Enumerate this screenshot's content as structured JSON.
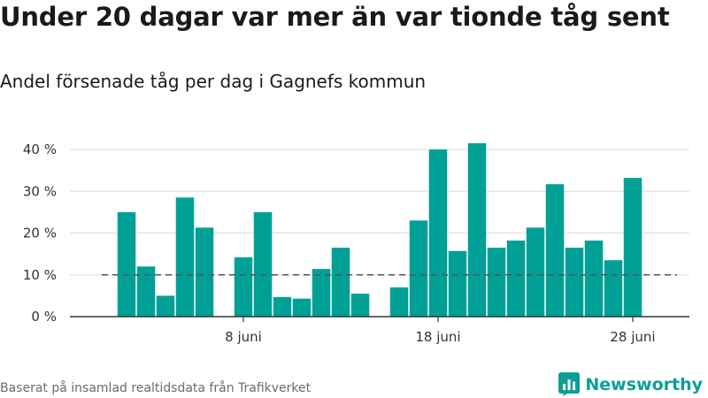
{
  "header": {
    "title": "Under 20 dagar var mer än var tionde tåg sent",
    "subtitle": "Andel försenade tåg per dag i Gagnefs kommun"
  },
  "footer": {
    "source": "Baserat på insamlad realtidsdata från Trafikverket",
    "brand": "Newsworthy",
    "brand_icon": "bar-chart-logo-icon"
  },
  "colors": {
    "bar": "#00a096",
    "gridline": "#dddddd",
    "axis": "#333333",
    "reference_line": "#555555",
    "brand": "#0d9f95"
  },
  "chart_data": {
    "type": "bar",
    "x_dates": [
      "2 juni",
      "3 juni",
      "4 juni",
      "5 juni",
      "6 juni",
      "7 juni",
      "8 juni",
      "9 juni",
      "10 juni",
      "11 juni",
      "12 juni",
      "13 juni",
      "14 juni",
      "15 juni",
      "16 juni",
      "17 juni",
      "18 juni",
      "19 juni",
      "20 juni",
      "21 juni",
      "22 juni",
      "23 juni",
      "24 juni",
      "25 juni",
      "26 juni",
      "27 juni",
      "28 juni",
      "29 juni"
    ],
    "values": [
      25,
      12,
      5,
      28.5,
      21.3,
      null,
      14.2,
      25,
      4.7,
      4.3,
      11.4,
      16.5,
      5.5,
      null,
      7,
      23,
      40,
      15.7,
      41.5,
      16.5,
      18.2,
      21.3,
      31.7,
      16.5,
      18.2,
      13.5,
      33.2,
      null
    ],
    "x_tick_labels": [
      "8 juni",
      "18 juni",
      "28 juni"
    ],
    "x_tick_dates": [
      "8 juni",
      "18 juni",
      "28 juni"
    ],
    "y_ticks": [
      0,
      10,
      20,
      30,
      40
    ],
    "y_tick_labels": [
      "0 %",
      "10 %",
      "20 %",
      "30 %",
      "40 %"
    ],
    "ylim": [
      0,
      44
    ],
    "reference_line": 10,
    "xlabel": "",
    "ylabel": "",
    "grid": true,
    "legend": false
  }
}
